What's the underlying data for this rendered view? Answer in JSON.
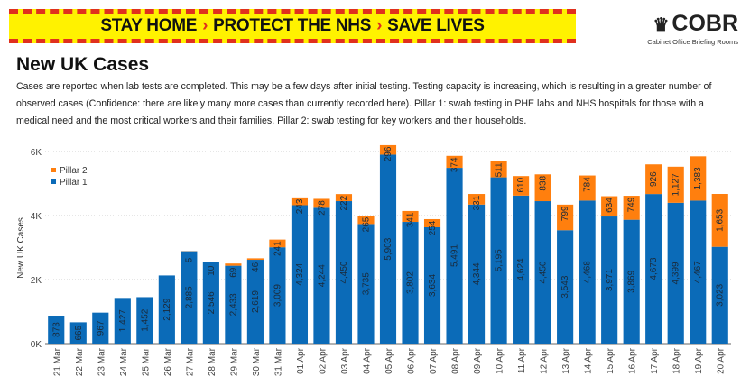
{
  "banner": {
    "part1": "STAY HOME",
    "part2": "PROTECT THE NHS",
    "part3": "SAVE LIVES",
    "separator": "›"
  },
  "logo": {
    "name": "COBR",
    "subtitle": "Cabinet Office Briefing Rooms"
  },
  "title": "New UK Cases",
  "description": "Cases are reported when lab tests are completed. This may be a few days after initial testing. Testing capacity is increasing, which is resulting in a greater number of observed cases (Confidence: there are likely many more cases than currently recorded here). Pillar 1: swab testing in PHE labs and NHS hospitals for those with a medical need and the most critical workers and their families. Pillar 2: swab testing for key workers and their households.",
  "colors": {
    "pillar1": "#0b6bb8",
    "pillar2": "#ff7f0e",
    "banner": "#fff200",
    "stripe": "#e0301e"
  },
  "chart_data": {
    "type": "bar",
    "stacked": true,
    "title": "New UK Cases",
    "xlabel": "",
    "ylabel": "New UK Cases",
    "ylim": [
      0,
      6200
    ],
    "yticks": [
      0,
      2000,
      4000,
      6000
    ],
    "ytick_labels": [
      "0K",
      "2K",
      "4K",
      "6K"
    ],
    "grid": true,
    "legend": "top-left",
    "categories": [
      "21 Mar",
      "22 Mar",
      "23 Mar",
      "24 Mar",
      "25 Mar",
      "26 Mar",
      "27 Mar",
      "28 Mar",
      "29 Mar",
      "30 Mar",
      "31 Mar",
      "01 Apr",
      "02 Apr",
      "03 Apr",
      "04 Apr",
      "05 Apr",
      "06 Apr",
      "07 Apr",
      "08 Apr",
      "09 Apr",
      "10 Apr",
      "11 Apr",
      "12 Apr",
      "13 Apr",
      "14 Apr",
      "15 Apr",
      "16 Apr",
      "17 Apr",
      "18 Apr",
      "19 Apr",
      "20 Apr"
    ],
    "series": [
      {
        "name": "Pillar 1",
        "values": [
          873,
          665,
          967,
          1427,
          1452,
          2129,
          2885,
          2546,
          2433,
          2619,
          3009,
          4324,
          4244,
          4450,
          3735,
          5903,
          3802,
          3634,
          5491,
          4344,
          5195,
          4624,
          4450,
          3543,
          4468,
          3971,
          3869,
          4673,
          4399,
          4467,
          3023
        ],
        "labels": [
          "873",
          "665",
          "967",
          "1,427",
          "1,452",
          "2,129",
          "2,885",
          "2,546",
          "2,433",
          "2,619",
          "3,009",
          "4,324",
          "4,244",
          "4,450",
          "3,735",
          "5,903",
          "3,802",
          "3,634",
          "5,491",
          "4,344",
          "5,195",
          "4,624",
          "4,450",
          "3,543",
          "4,468",
          "3,971",
          "3,869",
          "4,673",
          "4,399",
          "4,467",
          "3,023"
        ]
      },
      {
        "name": "Pillar 2",
        "values": [
          0,
          0,
          0,
          0,
          0,
          0,
          5,
          10,
          69,
          46,
          241,
          243,
          278,
          222,
          265,
          296,
          341,
          254,
          374,
          331,
          511,
          610,
          838,
          799,
          784,
          634,
          749,
          926,
          1127,
          1383,
          1653
        ],
        "labels": [
          "",
          "",
          "",
          "",
          "",
          "",
          "5",
          "10",
          "69",
          "46",
          "241",
          "243",
          "278",
          "222",
          "265",
          "296",
          "341",
          "254",
          "374",
          "331",
          "511",
          "610",
          "838",
          "799",
          "784",
          "634",
          "749",
          "926",
          "1,127",
          "1,383",
          "1,653"
        ]
      }
    ]
  }
}
